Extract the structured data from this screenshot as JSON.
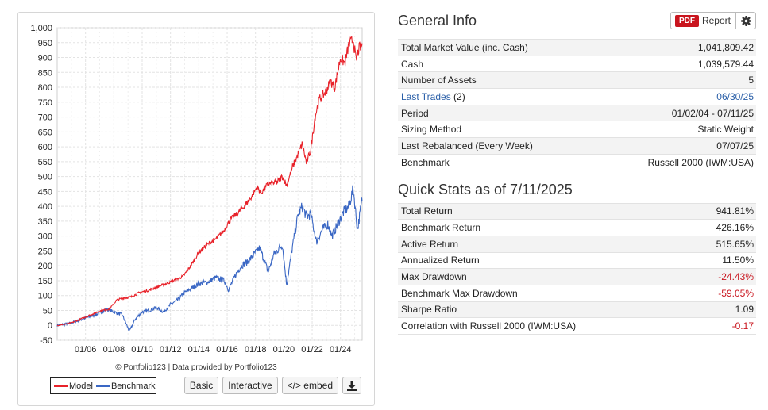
{
  "chart": {
    "credit": "© Portfolio123 | Data provided by Portfolio123",
    "legend": [
      {
        "label": "Model",
        "color": "#e8222a"
      },
      {
        "label": "Benchmark",
        "color": "#3a67c4"
      }
    ],
    "buttons": {
      "basic": "Basic",
      "interactive": "Interactive",
      "embed": "</> embed",
      "download_icon": "download-icon"
    }
  },
  "chart_data": {
    "type": "line",
    "x_ticks": [
      "01/06",
      "01/08",
      "01/10",
      "01/12",
      "01/14",
      "01/16",
      "01/18",
      "01/20",
      "01/22",
      "01/24"
    ],
    "y_ticks": [
      "1,000",
      "950",
      "900",
      "850",
      "800",
      "750",
      "700",
      "650",
      "600",
      "550",
      "500",
      "450",
      "400",
      "350",
      "300",
      "250",
      "200",
      "150",
      "100",
      "50",
      "0",
      "-50"
    ],
    "ylim": [
      -50,
      1000
    ],
    "xlim": [
      2004.0,
      2025.53
    ],
    "grid": true,
    "legend_position": "bottom-left",
    "series": [
      {
        "name": "Model",
        "color": "#e8222a",
        "points": [
          [
            2004.0,
            0
          ],
          [
            2005.0,
            8
          ],
          [
            2006.0,
            28
          ],
          [
            2007.0,
            48
          ],
          [
            2007.7,
            55
          ],
          [
            2008.2,
            85
          ],
          [
            2008.7,
            92
          ],
          [
            2009.2,
            95
          ],
          [
            2009.8,
            110
          ],
          [
            2010.5,
            118
          ],
          [
            2011.0,
            128
          ],
          [
            2011.7,
            140
          ],
          [
            2012.3,
            152
          ],
          [
            2012.9,
            165
          ],
          [
            2013.5,
            205
          ],
          [
            2014.0,
            245
          ],
          [
            2014.6,
            272
          ],
          [
            2015.2,
            290
          ],
          [
            2015.8,
            320
          ],
          [
            2016.2,
            355
          ],
          [
            2016.7,
            375
          ],
          [
            2017.2,
            400
          ],
          [
            2017.7,
            430
          ],
          [
            2018.1,
            465
          ],
          [
            2018.4,
            445
          ],
          [
            2018.9,
            475
          ],
          [
            2019.5,
            480
          ],
          [
            2019.9,
            500
          ],
          [
            2020.2,
            470
          ],
          [
            2020.6,
            530
          ],
          [
            2021.0,
            575
          ],
          [
            2021.3,
            610
          ],
          [
            2021.6,
            545
          ],
          [
            2021.9,
            590
          ],
          [
            2022.2,
            700
          ],
          [
            2022.5,
            760
          ],
          [
            2022.9,
            780
          ],
          [
            2023.3,
            820
          ],
          [
            2023.6,
            800
          ],
          [
            2024.0,
            900
          ],
          [
            2024.3,
            880
          ],
          [
            2024.6,
            945
          ],
          [
            2024.9,
            960
          ],
          [
            2025.1,
            890
          ],
          [
            2025.3,
            930
          ],
          [
            2025.53,
            942
          ]
        ]
      },
      {
        "name": "Benchmark",
        "color": "#3a67c4",
        "points": [
          [
            2004.0,
            0
          ],
          [
            2005.0,
            8
          ],
          [
            2006.0,
            25
          ],
          [
            2007.0,
            40
          ],
          [
            2007.5,
            55
          ],
          [
            2008.0,
            45
          ],
          [
            2008.6,
            35
          ],
          [
            2009.1,
            -20
          ],
          [
            2009.5,
            20
          ],
          [
            2010.0,
            45
          ],
          [
            2010.5,
            50
          ],
          [
            2011.0,
            60
          ],
          [
            2011.5,
            45
          ],
          [
            2012.0,
            70
          ],
          [
            2012.5,
            85
          ],
          [
            2013.0,
            110
          ],
          [
            2013.5,
            125
          ],
          [
            2014.0,
            140
          ],
          [
            2014.6,
            145
          ],
          [
            2015.2,
            160
          ],
          [
            2015.8,
            150
          ],
          [
            2016.1,
            120
          ],
          [
            2016.6,
            170
          ],
          [
            2017.0,
            200
          ],
          [
            2017.5,
            215
          ],
          [
            2018.0,
            245
          ],
          [
            2018.3,
            260
          ],
          [
            2018.9,
            180
          ],
          [
            2019.3,
            240
          ],
          [
            2019.9,
            270
          ],
          [
            2020.2,
            135
          ],
          [
            2020.6,
            260
          ],
          [
            2021.0,
            370
          ],
          [
            2021.3,
            400
          ],
          [
            2021.6,
            365
          ],
          [
            2021.9,
            375
          ],
          [
            2022.3,
            280
          ],
          [
            2022.7,
            320
          ],
          [
            2023.1,
            340
          ],
          [
            2023.4,
            300
          ],
          [
            2023.8,
            340
          ],
          [
            2024.2,
            380
          ],
          [
            2024.6,
            400
          ],
          [
            2024.9,
            460
          ],
          [
            2025.2,
            320
          ],
          [
            2025.53,
            426
          ]
        ]
      }
    ]
  },
  "general_info": {
    "title": "General Info",
    "report": {
      "pdf_badge": "PDF",
      "label": "Report",
      "settings_icon": "gear-icon"
    },
    "rows": [
      {
        "label": "Total Market Value (inc. Cash)",
        "value": "1,041,809.42"
      },
      {
        "label": "Cash",
        "value": "1,039,579.44"
      },
      {
        "label": "Number of Assets",
        "value": "5"
      },
      {
        "label": "Last Trades",
        "label_suffix": " (2)",
        "value": "06/30/25",
        "link": true
      },
      {
        "label": "Period",
        "value": "01/02/04 - 07/11/25"
      },
      {
        "label": "Sizing Method",
        "value": "Static Weight"
      },
      {
        "label": "Last Rebalanced (Every Week)",
        "value": "07/07/25"
      },
      {
        "label": "Benchmark",
        "value": "Russell 2000 (IWM:USA)"
      }
    ]
  },
  "quick_stats": {
    "title": "Quick Stats as of 7/11/2025",
    "rows": [
      {
        "label": "Total Return",
        "value": "941.81%"
      },
      {
        "label": "Benchmark Return",
        "value": "426.16%"
      },
      {
        "label": "Active Return",
        "value": "515.65%"
      },
      {
        "label": "Annualized Return",
        "value": "11.50%"
      },
      {
        "label": "Max Drawdown",
        "value": "-24.43%",
        "negative": true
      },
      {
        "label": "Benchmark Max Drawdown",
        "value": "-59.05%",
        "negative": true
      },
      {
        "label": "Sharpe Ratio",
        "value": "1.09"
      },
      {
        "label": "Correlation with Russell 2000 (IWM:USA)",
        "value": "-0.17",
        "negative": true
      }
    ]
  }
}
